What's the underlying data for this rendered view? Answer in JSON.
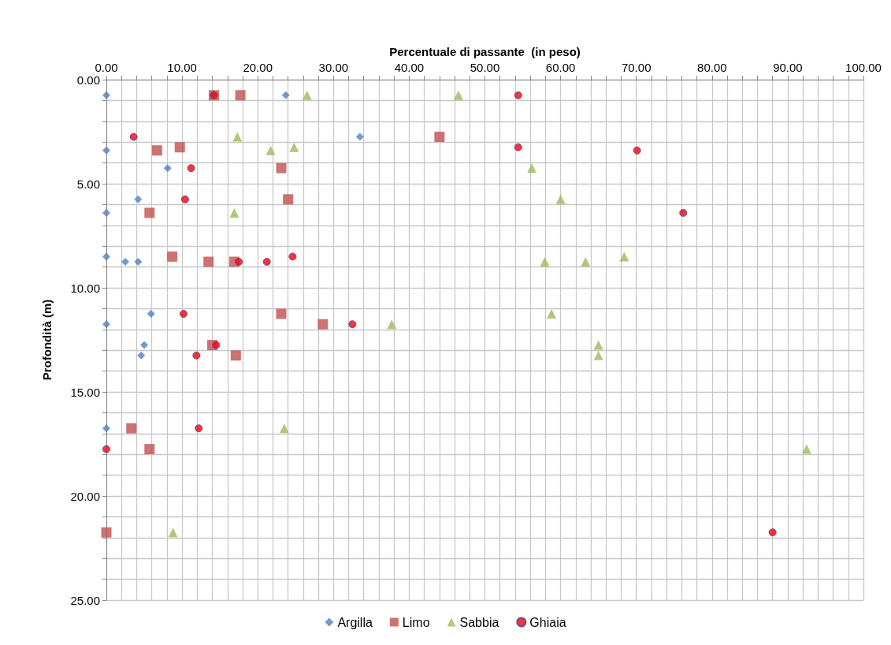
{
  "chart_data": {
    "type": "scatter",
    "xlabel": "Percentuale di passante  (in peso)",
    "ylabel": "Profondità (m)",
    "xlim": [
      0,
      100
    ],
    "ylim": [
      25,
      0
    ],
    "xticks": [
      {
        "value": 0,
        "label": "0.00"
      },
      {
        "value": 2,
        "label": null
      },
      {
        "value": 4,
        "label": null
      },
      {
        "value": 6,
        "label": null
      },
      {
        "value": 8,
        "label": null
      },
      {
        "value": 10,
        "label": "10.00"
      },
      {
        "value": 12,
        "label": null
      },
      {
        "value": 14,
        "label": null
      },
      {
        "value": 16,
        "label": null
      },
      {
        "value": 18,
        "label": null
      },
      {
        "value": 20,
        "label": "20.00"
      },
      {
        "value": 22,
        "label": null
      },
      {
        "value": 24,
        "label": null
      },
      {
        "value": 26,
        "label": null
      },
      {
        "value": 28,
        "label": null
      },
      {
        "value": 30,
        "label": "30.00"
      },
      {
        "value": 32,
        "label": null
      },
      {
        "value": 34,
        "label": null
      },
      {
        "value": 36,
        "label": null
      },
      {
        "value": 38,
        "label": null
      },
      {
        "value": 40,
        "label": "40.00"
      },
      {
        "value": 42,
        "label": null
      },
      {
        "value": 44,
        "label": null
      },
      {
        "value": 46,
        "label": null
      },
      {
        "value": 48,
        "label": null
      },
      {
        "value": 50,
        "label": "50.00"
      },
      {
        "value": 52,
        "label": null
      },
      {
        "value": 54,
        "label": null
      },
      {
        "value": 56,
        "label": null
      },
      {
        "value": 58,
        "label": null
      },
      {
        "value": 60,
        "label": "60.00"
      },
      {
        "value": 62,
        "label": null
      },
      {
        "value": 64,
        "label": null
      },
      {
        "value": 66,
        "label": null
      },
      {
        "value": 68,
        "label": null
      },
      {
        "value": 70,
        "label": "70.00"
      },
      {
        "value": 72,
        "label": null
      },
      {
        "value": 74,
        "label": null
      },
      {
        "value": 76,
        "label": null
      },
      {
        "value": 78,
        "label": null
      },
      {
        "value": 80,
        "label": "80.00"
      },
      {
        "value": 82,
        "label": null
      },
      {
        "value": 84,
        "label": null
      },
      {
        "value": 86,
        "label": null
      },
      {
        "value": 88,
        "label": null
      },
      {
        "value": 90,
        "label": "90.00"
      },
      {
        "value": 92,
        "label": null
      },
      {
        "value": 94,
        "label": null
      },
      {
        "value": 96,
        "label": null
      },
      {
        "value": 98,
        "label": null
      },
      {
        "value": 100,
        "label": "100.00"
      }
    ],
    "yticks": [
      {
        "value": 0,
        "label": "0.00"
      },
      {
        "value": 1,
        "label": null
      },
      {
        "value": 2,
        "label": null
      },
      {
        "value": 3,
        "label": null
      },
      {
        "value": 4,
        "label": null
      },
      {
        "value": 5,
        "label": "5.00"
      },
      {
        "value": 6,
        "label": null
      },
      {
        "value": 7,
        "label": null
      },
      {
        "value": 8,
        "label": null
      },
      {
        "value": 9,
        "label": null
      },
      {
        "value": 10,
        "label": "10.00"
      },
      {
        "value": 11,
        "label": null
      },
      {
        "value": 12,
        "label": null
      },
      {
        "value": 13,
        "label": null
      },
      {
        "value": 14,
        "label": null
      },
      {
        "value": 15,
        "label": "15.00"
      },
      {
        "value": 16,
        "label": null
      },
      {
        "value": 17,
        "label": null
      },
      {
        "value": 18,
        "label": null
      },
      {
        "value": 19,
        "label": null
      },
      {
        "value": 20,
        "label": "20.00"
      },
      {
        "value": 21,
        "label": null
      },
      {
        "value": 22,
        "label": null
      },
      {
        "value": 23,
        "label": null
      },
      {
        "value": 24,
        "label": null
      },
      {
        "value": 25,
        "label": "25.00"
      }
    ],
    "grid": true,
    "legend": "bottom",
    "series": [
      {
        "name": "Argilla",
        "color": "#4f81bd",
        "marker": "diamond",
        "x": [
          0,
          23.7,
          33.5,
          0,
          null,
          8.1,
          4.2,
          0,
          0,
          2.5,
          4.2,
          5.9,
          0,
          5.0,
          4.6,
          0,
          null
        ],
        "values": [
          0.75,
          0.75,
          2.75,
          3.4,
          null,
          4.25,
          5.75,
          6.4,
          8.5,
          8.75,
          8.75,
          11.25,
          11.75,
          12.75,
          13.25,
          16.75,
          null
        ]
      },
      {
        "name": "Limo",
        "color": "#c0504d",
        "marker": "square",
        "x": [
          14.2,
          17.7,
          44,
          6.7,
          9.7,
          23.1,
          24,
          5.7,
          8.7,
          13.5,
          16.9,
          23.1,
          28.6,
          14,
          17.1,
          3.3,
          5.7,
          0
        ],
        "values": [
          0.75,
          0.75,
          2.75,
          3.4,
          3.25,
          4.25,
          5.75,
          6.4,
          8.5,
          8.75,
          8.75,
          11.25,
          11.75,
          12.75,
          13.25,
          16.75,
          17.75,
          21.75
        ]
      },
      {
        "name": "Sabbia",
        "color": "#9bbb59",
        "marker": "triangle",
        "x": [
          26.5,
          46.5,
          17.3,
          21.7,
          24.8,
          56.2,
          60,
          16.9,
          57.9,
          63.3,
          68.4,
          58.8,
          37.7,
          65,
          65,
          23.5,
          92.5,
          8.8
        ],
        "values": [
          0.75,
          0.75,
          2.75,
          3.4,
          3.25,
          4.25,
          5.75,
          6.4,
          8.75,
          8.75,
          8.5,
          11.25,
          11.75,
          12.75,
          13.25,
          16.75,
          17.75,
          21.75
        ]
      },
      {
        "name": "Ghiaia",
        "color": "#ff0000",
        "marker": "circle",
        "x": [
          14.2,
          54.4,
          3.6,
          54.4,
          70.1,
          11.2,
          10.4,
          76.2,
          24.6,
          17.5,
          21.2,
          10.2,
          32.5,
          14.5,
          11.9,
          12.2,
          0,
          88
        ],
        "values": [
          0.75,
          0.75,
          2.75,
          3.25,
          3.4,
          4.25,
          5.75,
          6.4,
          8.5,
          8.75,
          8.75,
          11.25,
          11.75,
          12.75,
          13.25,
          16.75,
          17.75,
          21.75
        ]
      }
    ]
  }
}
